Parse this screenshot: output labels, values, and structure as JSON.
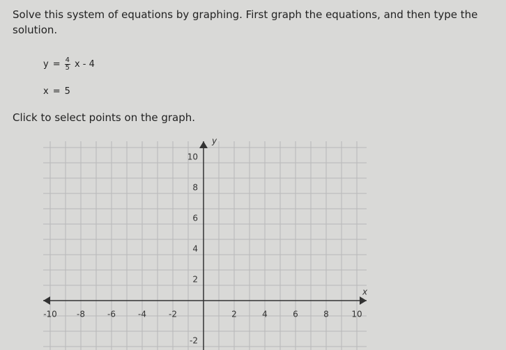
{
  "prompt": "Solve this system of equations by graphing. First graph the equations, and then type the solution.",
  "equations": [
    {
      "lhs": "y",
      "eq": "=",
      "numerator": "4",
      "denominator": "5",
      "rest": "x - 4"
    },
    {
      "lhs": "x",
      "eq": "=",
      "rest": "5"
    }
  ],
  "instruction": "Click to select points on the graph.",
  "graph": {
    "x_label": "x",
    "y_label": "y",
    "xticks": [
      -10,
      -8,
      -6,
      -4,
      -2,
      2,
      4,
      6,
      8,
      10
    ],
    "yticks": [
      10,
      8,
      6,
      4,
      2,
      -2
    ]
  }
}
